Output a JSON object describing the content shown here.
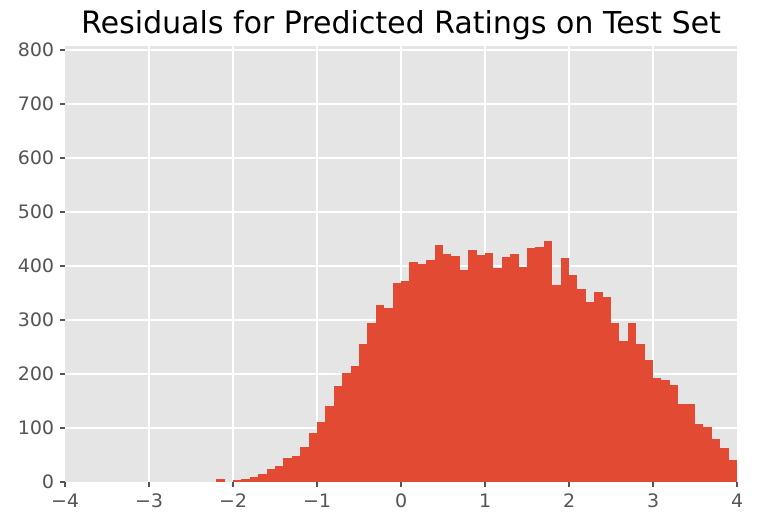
{
  "title": "Residuals for Predicted Ratings on Test Set",
  "style": {
    "bar_color": "#E24A33",
    "panel_background": "#E5E5E5",
    "gridline_color": "#FFFFFF",
    "tick_color": "#555555",
    "tick_label_color": "#555555",
    "title_color": "#000000",
    "figure_background": "#FFFFFF"
  },
  "chart_data": {
    "type": "bar",
    "subtype": "histogram",
    "title": "Residuals for Predicted Ratings on Test Set",
    "xlabel": "",
    "ylabel": "",
    "xlim": [
      -4,
      4
    ],
    "ylim": [
      0,
      807
    ],
    "grid": true,
    "legend": false,
    "x_tick_labels": [
      "−4",
      "−3",
      "−2",
      "−1",
      "0",
      "1",
      "2",
      "3",
      "4"
    ],
    "x_tick_values": [
      -4,
      -3,
      -2,
      -1,
      0,
      1,
      2,
      3,
      4
    ],
    "y_tick_labels": [
      "0",
      "100",
      "200",
      "300",
      "400",
      "500",
      "600",
      "700",
      "800"
    ],
    "y_tick_values": [
      0,
      100,
      200,
      300,
      400,
      500,
      600,
      700,
      800
    ],
    "bin_start": -2.2,
    "bin_width": 0.1,
    "values": [
      6,
      0,
      3,
      5,
      9,
      15,
      24,
      29,
      45,
      48,
      65,
      90,
      111,
      140,
      178,
      201,
      214,
      255,
      295,
      327,
      322,
      368,
      372,
      408,
      404,
      412,
      438,
      422,
      418,
      393,
      430,
      420,
      425,
      397,
      416,
      422,
      398,
      433,
      435,
      446,
      365,
      415,
      384,
      358,
      333,
      352,
      343,
      295,
      261,
      295,
      255,
      226,
      192,
      189,
      179,
      145,
      145,
      107,
      101,
      79,
      63,
      41
    ]
  }
}
